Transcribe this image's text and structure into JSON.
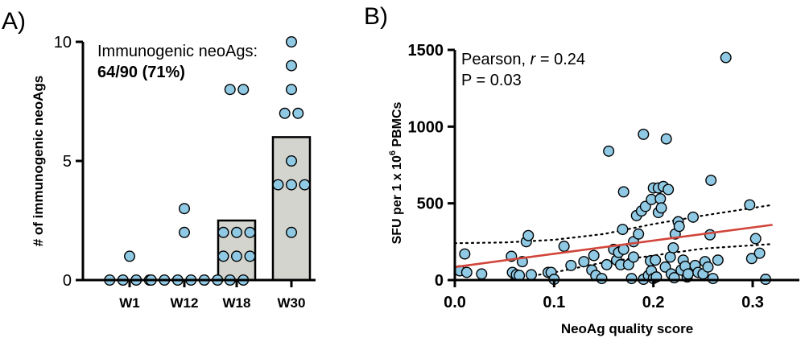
{
  "panel_a": {
    "panel_label": "A)",
    "annotation_line1": "Immunogenic neoAgs:",
    "annotation_line2": "64/90 (71%)",
    "chart_data": {
      "type": "bar",
      "categories": [
        "W1",
        "W12",
        "W18",
        "W30"
      ],
      "values": [
        0,
        0,
        2.5,
        6
      ],
      "points": [
        [
          1,
          0,
          0,
          0,
          0
        ],
        [
          3,
          2,
          0,
          0,
          0,
          0,
          0,
          0
        ],
        [
          8,
          8,
          2,
          2,
          2,
          1,
          1,
          1,
          0,
          0
        ],
        [
          10,
          9,
          8,
          7,
          7,
          5,
          4,
          4,
          4,
          2
        ]
      ],
      "title": "",
      "xlabel": "",
      "ylabel": "# of immunogenic neoAgs",
      "ylim": [
        0,
        10
      ],
      "yticks": [
        "0",
        "5",
        "10"
      ],
      "bar_color": "#d4d4cf",
      "point_color": "#8fc9e4"
    }
  },
  "panel_b": {
    "panel_label": "B)",
    "stat_pearson_prefix": "Pearson, ",
    "stat_r_symbol": "r",
    "stat_r_value": " = 0.24",
    "stat_p": "P = 0.03",
    "ylabel_parts": [
      "SFU per 1 x 10",
      "6",
      " PBMCs"
    ],
    "chart_data": {
      "type": "scatter",
      "title": "",
      "xlabel": "NeoAg quality score",
      "ylabel": "SFU per 1 x 10^6 PBMCs",
      "xlim": [
        0,
        0.35
      ],
      "ylim": [
        0,
        1500
      ],
      "xticks": [
        "0.0",
        "0.1",
        "0.2",
        "0.3"
      ],
      "yticks": [
        "0",
        "500",
        "1000",
        "1500"
      ],
      "points": [
        [
          0.005,
          60
        ],
        [
          0.01,
          170
        ],
        [
          0.012,
          50
        ],
        [
          0.027,
          40
        ],
        [
          0.058,
          50
        ],
        [
          0.057,
          155
        ],
        [
          0.062,
          35
        ],
        [
          0.065,
          30
        ],
        [
          0.068,
          120
        ],
        [
          0.072,
          250
        ],
        [
          0.074,
          290
        ],
        [
          0.077,
          35
        ],
        [
          0.094,
          50
        ],
        [
          0.097,
          50
        ],
        [
          0.1,
          5
        ],
        [
          0.11,
          220
        ],
        [
          0.117,
          95
        ],
        [
          0.13,
          120
        ],
        [
          0.138,
          65
        ],
        [
          0.14,
          160
        ],
        [
          0.142,
          30
        ],
        [
          0.148,
          10
        ],
        [
          0.153,
          100
        ],
        [
          0.155,
          840
        ],
        [
          0.16,
          200
        ],
        [
          0.163,
          130
        ],
        [
          0.165,
          180
        ],
        [
          0.167,
          100
        ],
        [
          0.169,
          330
        ],
        [
          0.17,
          575
        ],
        [
          0.17,
          200
        ],
        [
          0.175,
          100
        ],
        [
          0.178,
          10
        ],
        [
          0.18,
          150
        ],
        [
          0.18,
          250
        ],
        [
          0.183,
          420
        ],
        [
          0.185,
          300
        ],
        [
          0.188,
          450
        ],
        [
          0.19,
          5
        ],
        [
          0.19,
          950
        ],
        [
          0.192,
          480
        ],
        [
          0.195,
          30
        ],
        [
          0.197,
          125
        ],
        [
          0.198,
          60
        ],
        [
          0.198,
          525
        ],
        [
          0.2,
          10
        ],
        [
          0.2,
          600
        ],
        [
          0.202,
          130
        ],
        [
          0.203,
          20
        ],
        [
          0.205,
          600
        ],
        [
          0.205,
          440
        ],
        [
          0.207,
          530
        ],
        [
          0.208,
          470
        ],
        [
          0.21,
          610
        ],
        [
          0.212,
          85
        ],
        [
          0.213,
          920
        ],
        [
          0.215,
          590
        ],
        [
          0.217,
          150
        ],
        [
          0.218,
          40
        ],
        [
          0.22,
          210
        ],
        [
          0.221,
          15
        ],
        [
          0.222,
          300
        ],
        [
          0.225,
          380
        ],
        [
          0.226,
          350
        ],
        [
          0.228,
          65
        ],
        [
          0.23,
          130
        ],
        [
          0.232,
          90
        ],
        [
          0.234,
          20
        ],
        [
          0.235,
          40
        ],
        [
          0.24,
          410
        ],
        [
          0.242,
          95
        ],
        [
          0.245,
          50
        ],
        [
          0.25,
          40
        ],
        [
          0.252,
          120
        ],
        [
          0.255,
          85
        ],
        [
          0.257,
          295
        ],
        [
          0.258,
          650
        ],
        [
          0.26,
          10
        ],
        [
          0.265,
          130
        ],
        [
          0.273,
          1450
        ],
        [
          0.297,
          490
        ],
        [
          0.299,
          140
        ],
        [
          0.303,
          270
        ],
        [
          0.307,
          175
        ],
        [
          0.313,
          5
        ]
      ],
      "regression": {
        "x": [
          0,
          0.32
        ],
        "y": [
          85,
          360
        ]
      },
      "ci_upper": {
        "x": [
          0,
          0.05,
          0.1,
          0.15,
          0.2,
          0.25,
          0.32
        ],
        "y": [
          240,
          245,
          262,
          300,
          365,
          420,
          490
        ]
      },
      "ci_lower": {
        "x": [
          0,
          0.05,
          0.1,
          0.15,
          0.2,
          0.25,
          0.32
        ],
        "y": [
          -70,
          -15,
          50,
          115,
          160,
          205,
          235
        ]
      },
      "regression_color": "#d1453b",
      "point_color": "#8fc9e4"
    }
  }
}
